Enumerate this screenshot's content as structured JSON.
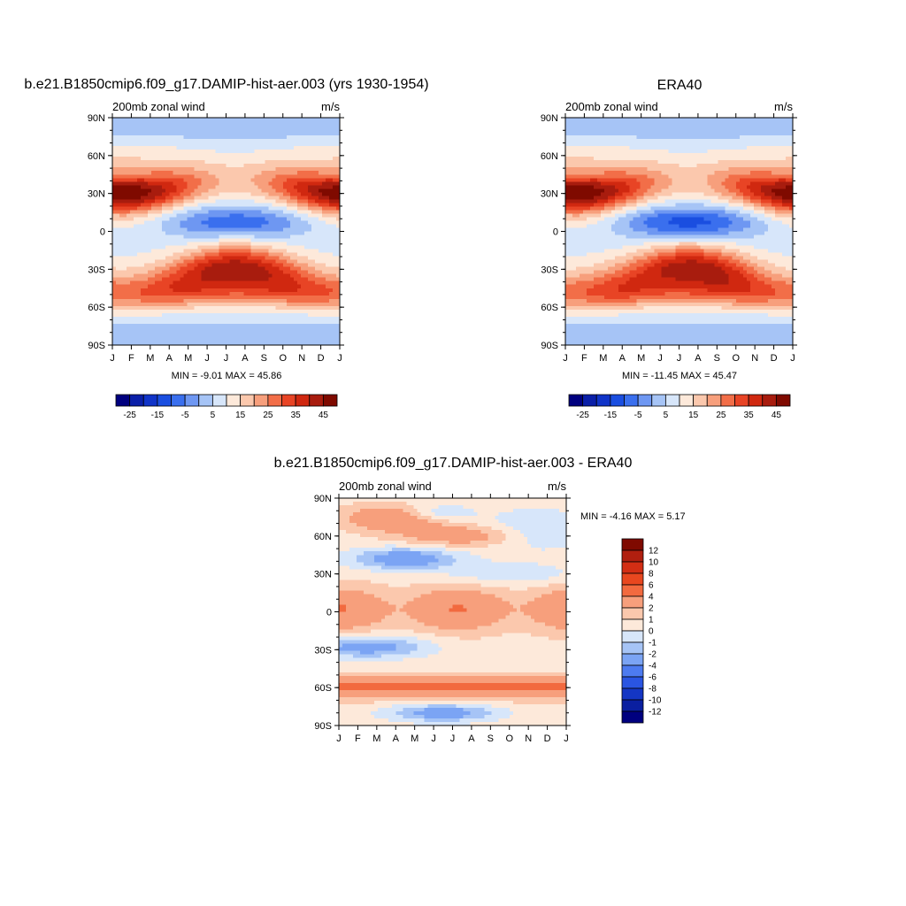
{
  "figure": {
    "panels": [
      {
        "title": "b.e21.B1850cmip6.f09_g17.DAMIP-hist-aer.003 (yrs 1930-1954)",
        "left_label": "200mb zonal wind",
        "right_label": "m/s",
        "stats": "MIN =  -9.01 MAX =  45.86"
      },
      {
        "title": "ERA40",
        "left_label": "200mb zonal wind",
        "right_label": "m/s",
        "stats": "MIN = -11.45 MAX =  45.47"
      },
      {
        "title": "b.e21.B1850cmip6.f09_g17.DAMIP-hist-aer.003 - ERA40",
        "left_label": "200mb zonal wind",
        "right_label": "m/s",
        "stats": "MIN =  -4.16 MAX =   5.17"
      }
    ],
    "colorbars": {
      "fields": {
        "labels": [
          "-25",
          "-15",
          "-5",
          "5",
          "15",
          "25",
          "35",
          "45"
        ],
        "colors": [
          "#00007f",
          "#0a1fa8",
          "#1034c8",
          "#1a4ee0",
          "#3a6fee",
          "#6e97f2",
          "#a6c4f6",
          "#d7e6fa",
          "#fde9da",
          "#fbc8ad",
          "#f79f7c",
          "#f26e48",
          "#e84425",
          "#d02810",
          "#a81c0e",
          "#7f0a00"
        ]
      },
      "difference": {
        "labels": [
          "12",
          "10",
          "8",
          "6",
          "4",
          "2",
          "1",
          "0",
          "-1",
          "-2",
          "-4",
          "-6",
          "-8",
          "-10",
          "-12"
        ],
        "colors": [
          "#7f0a00",
          "#b01f0f",
          "#d32e14",
          "#e8471f",
          "#f26a3f",
          "#f79f7c",
          "#fbc8ad",
          "#fde9da",
          "#d7e6fa",
          "#a6c4f6",
          "#7ba4f4",
          "#4d7bf0",
          "#2a55e2",
          "#1436c4",
          "#0a1fa0",
          "#00007f"
        ]
      }
    }
  },
  "chart_data": [
    {
      "type": "heatmap",
      "title": "b.e21.B1850cmip6.f09_g17.DAMIP-hist-aer.003 (yrs 1930-1954)",
      "variable": "200mb zonal wind",
      "units": "m/s",
      "x_ticks": [
        "J",
        "F",
        "M",
        "A",
        "M",
        "J",
        "J",
        "A",
        "S",
        "O",
        "N",
        "D",
        "J"
      ],
      "y_ticks": [
        "90N",
        "60N",
        "30N",
        "0",
        "30S",
        "60S",
        "90S"
      ],
      "ylim": [
        -90,
        90
      ],
      "min": -9.01,
      "max": 45.86,
      "colorbar_levels": [
        -25,
        -20,
        -15,
        -10,
        -5,
        0,
        5,
        10,
        15,
        20,
        25,
        30,
        35,
        40,
        45
      ],
      "features": [
        {
          "kind": "max",
          "lat": 30,
          "month_center": 1.5,
          "value": 45
        },
        {
          "kind": "max",
          "lat": 30,
          "month_center": 12.3,
          "value": 40
        },
        {
          "kind": "max",
          "lat": -28,
          "month_center": 7.0,
          "value": 45
        },
        {
          "kind": "min",
          "lat": 7,
          "month_center": 7.3,
          "value": -9
        }
      ]
    },
    {
      "type": "heatmap",
      "title": "ERA40",
      "variable": "200mb zonal wind",
      "units": "m/s",
      "x_ticks": [
        "J",
        "F",
        "M",
        "A",
        "M",
        "J",
        "J",
        "A",
        "S",
        "O",
        "N",
        "D",
        "J"
      ],
      "y_ticks": [
        "90N",
        "60N",
        "30N",
        "0",
        "30S",
        "60S",
        "90S"
      ],
      "ylim": [
        -90,
        90
      ],
      "min": -11.45,
      "max": 45.47,
      "colorbar_levels": [
        -25,
        -20,
        -15,
        -10,
        -5,
        0,
        5,
        10,
        15,
        20,
        25,
        30,
        35,
        40,
        45
      ],
      "features": [
        {
          "kind": "max",
          "lat": 30,
          "month_center": 1.5,
          "value": 45
        },
        {
          "kind": "max",
          "lat": 30,
          "month_center": 12.3,
          "value": 40
        },
        {
          "kind": "max",
          "lat": -28,
          "month_center": 7.0,
          "value": 40
        },
        {
          "kind": "min",
          "lat": 6,
          "month_center": 7.5,
          "value": -11
        }
      ]
    },
    {
      "type": "heatmap",
      "title": "b.e21.B1850cmip6.f09_g17.DAMIP-hist-aer.003 - ERA40",
      "variable": "200mb zonal wind",
      "units": "m/s",
      "x_ticks": [
        "J",
        "F",
        "M",
        "A",
        "M",
        "J",
        "J",
        "A",
        "S",
        "O",
        "N",
        "D",
        "J"
      ],
      "y_ticks": [
        "90N",
        "60N",
        "30N",
        "0",
        "30S",
        "60S",
        "90S"
      ],
      "ylim": [
        -90,
        90
      ],
      "min": -4.16,
      "max": 5.17,
      "colorbar_levels": [
        -12,
        -10,
        -8,
        -6,
        -4,
        -2,
        -1,
        0,
        1,
        2,
        4,
        6,
        8,
        10,
        12
      ],
      "features": [
        {
          "kind": "max",
          "lat": 74,
          "month_center": 3.0,
          "value": 4
        },
        {
          "kind": "min",
          "lat": 42,
          "month_center": 3.5,
          "value": -4
        },
        {
          "kind": "max",
          "lat": 2,
          "month_center": 2.0,
          "value": 5
        },
        {
          "kind": "max",
          "lat": -60,
          "month_center": 4.0,
          "value": 5
        },
        {
          "kind": "min",
          "lat": -80,
          "month_center": 5.5,
          "value": -4
        }
      ]
    }
  ]
}
